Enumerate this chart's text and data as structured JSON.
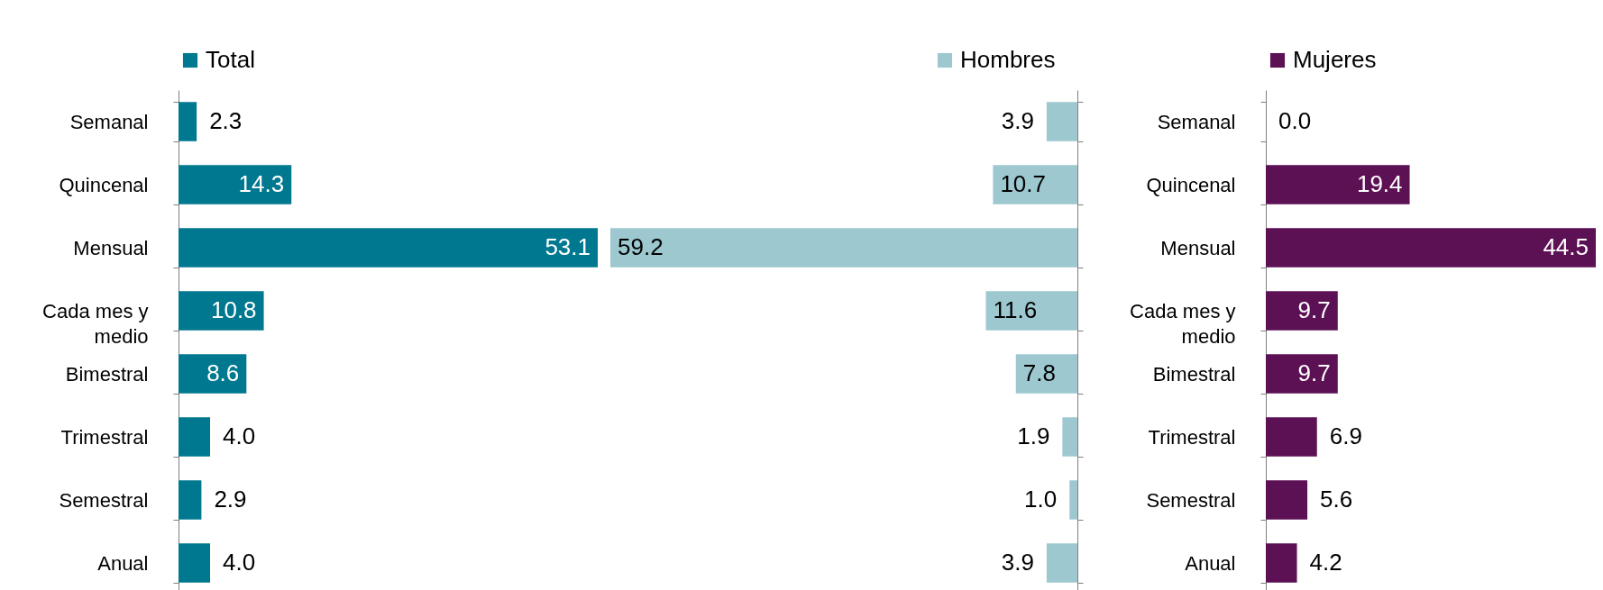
{
  "chart_data": [
    {
      "type": "bar",
      "orientation": "horizontal",
      "categories": [
        "Semanal",
        "Quincenal",
        "Mensual",
        "Cada mes y medio",
        "Bimestral",
        "Trimestral",
        "Semestral",
        "Anual"
      ],
      "series": [
        {
          "name": "Total",
          "color": "#00788f",
          "values": [
            2.3,
            14.3,
            53.1,
            10.8,
            8.6,
            4.0,
            2.9,
            4.0
          ],
          "value_labels": [
            "2.3",
            "14.3",
            "53.1",
            "10.8",
            "8.6",
            "4.0",
            "2.9",
            "4.0"
          ]
        }
      ],
      "xlim": [
        0,
        53.1
      ],
      "legend": "top left",
      "tick_labels": "y"
    },
    {
      "type": "bar",
      "orientation": "horizontal",
      "categories": [
        null,
        null,
        null,
        null,
        null,
        null,
        null,
        null
      ],
      "series": [
        {
          "name": "Hombres",
          "color": "#9dc8d0",
          "values": [
            3.9,
            10.7,
            59.2,
            11.6,
            7.8,
            1.9,
            1.0,
            3.9
          ],
          "value_labels": [
            "3.9",
            "10.7",
            "59.2",
            "11.6",
            "7.8",
            "1.9",
            "1.0",
            "3.9"
          ]
        }
      ],
      "xlim": [
        59.2,
        0
      ],
      "legend": "top right",
      "tick_labels": false
    },
    {
      "type": "bar",
      "orientation": "horizontal",
      "categories": [
        "Semanal",
        "Quincenal",
        "Mensual",
        "Cada mes y medio",
        "Bimestral",
        "Trimestral",
        "Semestral",
        "Anual"
      ],
      "series": [
        {
          "name": "Mujeres",
          "color": "#5c1154",
          "values": [
            0.0,
            19.4,
            44.5,
            9.7,
            9.7,
            6.9,
            5.6,
            4.2
          ],
          "value_labels": [
            "0.0",
            "19.4",
            "44.5",
            "9.7",
            "9.7",
            "6.9",
            "5.6",
            "4.2"
          ]
        }
      ],
      "xlim": [
        0,
        44.5
      ],
      "legend": "top left",
      "tick_labels": "y"
    }
  ]
}
